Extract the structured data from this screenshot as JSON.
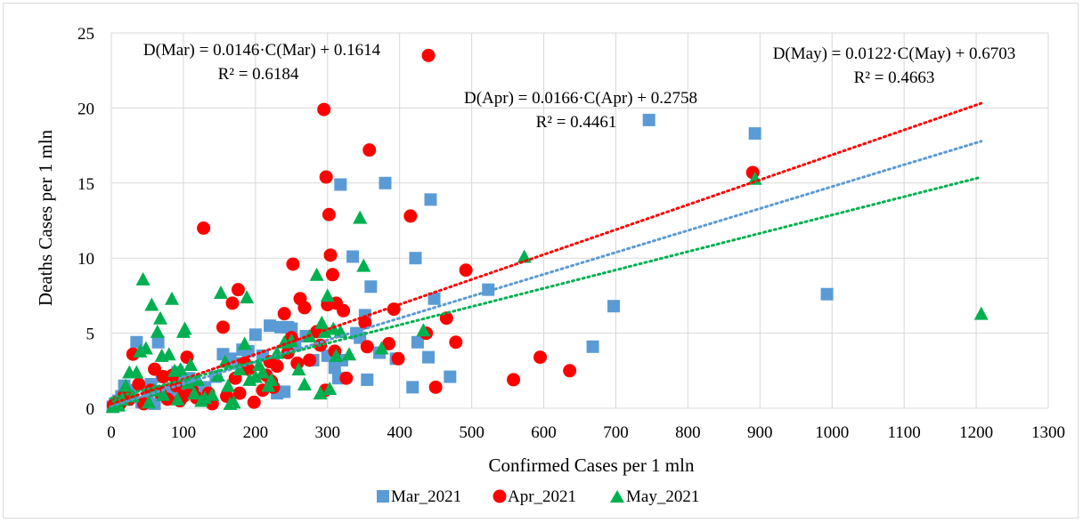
{
  "chart_data": {
    "type": "scatter",
    "title": "",
    "xlabel": "Confirmed Cases per 1 mln",
    "ylabel": "Deaths Cases  per 1 mln",
    "xlim": [
      0,
      1300
    ],
    "ylim": [
      0,
      25
    ],
    "x_ticks": [
      "0",
      "100",
      "200",
      "300",
      "400",
      "500",
      "600",
      "700",
      "800",
      "900",
      "1000",
      "1100",
      "1200",
      "1300"
    ],
    "y_ticks": [
      "0",
      "5",
      "10",
      "15",
      "20",
      "25"
    ],
    "grid": "vertical and horizontal major gridlines",
    "legend_position": "bottom",
    "series": [
      {
        "name": "Mar_2021",
        "marker": "square",
        "color": "#5B9BD5",
        "trendline": {
          "slope": 0.0146,
          "intercept": 0.1614,
          "color": "#5B9BD5",
          "style": "dotted"
        },
        "points": [
          [
            2,
            0.1
          ],
          [
            5,
            0.3
          ],
          [
            8,
            0.2
          ],
          [
            10,
            0.5
          ],
          [
            14,
            0.8
          ],
          [
            18,
            1.5
          ],
          [
            22,
            0.6
          ],
          [
            28,
            1.2
          ],
          [
            35,
            4.4
          ],
          [
            42,
            0.4
          ],
          [
            50,
            0.9
          ],
          [
            55,
            1.6
          ],
          [
            60,
            0.3
          ],
          [
            65,
            4.4
          ],
          [
            70,
            2.1
          ],
          [
            75,
            1.1
          ],
          [
            85,
            0.9
          ],
          [
            92,
            2.4
          ],
          [
            100,
            1.6
          ],
          [
            108,
            2.0
          ],
          [
            115,
            1.0
          ],
          [
            120,
            1.2
          ],
          [
            130,
            1.4
          ],
          [
            145,
            2.1
          ],
          [
            155,
            3.6
          ],
          [
            165,
            3.3
          ],
          [
            175,
            3.0
          ],
          [
            182,
            3.9
          ],
          [
            190,
            3.8
          ],
          [
            200,
            4.9
          ],
          [
            210,
            3.5
          ],
          [
            220,
            5.5
          ],
          [
            225,
            3.1
          ],
          [
            230,
            1.0
          ],
          [
            235,
            5.4
          ],
          [
            240,
            1.1
          ],
          [
            245,
            5.4
          ],
          [
            250,
            5.3
          ],
          [
            255,
            4.2
          ],
          [
            270,
            4.8
          ],
          [
            280,
            3.2
          ],
          [
            300,
            3.5
          ],
          [
            310,
            2.7
          ],
          [
            315,
            2.0
          ],
          [
            318,
            14.9
          ],
          [
            320,
            3.2
          ],
          [
            335,
            10.1
          ],
          [
            340,
            5.0
          ],
          [
            345,
            4.7
          ],
          [
            352,
            6.2
          ],
          [
            355,
            1.9
          ],
          [
            360,
            8.1
          ],
          [
            372,
            3.7
          ],
          [
            380,
            15.0
          ],
          [
            395,
            3.3
          ],
          [
            418,
            1.4
          ],
          [
            422,
            10.0
          ],
          [
            425,
            4.4
          ],
          [
            440,
            3.4
          ],
          [
            443,
            13.9
          ],
          [
            448,
            7.3
          ],
          [
            470,
            2.1
          ],
          [
            523,
            7.9
          ],
          [
            668,
            4.1
          ],
          [
            697,
            6.8
          ],
          [
            746,
            19.2
          ],
          [
            893,
            18.3
          ],
          [
            993,
            7.6
          ]
        ]
      },
      {
        "name": "Apr_2021",
        "marker": "circle",
        "color": "#FF0000",
        "trendline": {
          "slope": 0.0166,
          "intercept": 0.2758,
          "color": "#FF0000",
          "style": "dotted"
        },
        "points": [
          [
            3,
            0.2
          ],
          [
            8,
            0.4
          ],
          [
            12,
            0.3
          ],
          [
            18,
            0.9
          ],
          [
            25,
            0.6
          ],
          [
            30,
            3.6
          ],
          [
            38,
            1.6
          ],
          [
            45,
            0.3
          ],
          [
            55,
            1.2
          ],
          [
            60,
            2.6
          ],
          [
            68,
            1.0
          ],
          [
            72,
            2.1
          ],
          [
            78,
            0.6
          ],
          [
            85,
            2.2
          ],
          [
            90,
            1.5
          ],
          [
            95,
            0.5
          ],
          [
            100,
            0.8
          ],
          [
            105,
            3.4
          ],
          [
            112,
            1.2
          ],
          [
            118,
            0.7
          ],
          [
            128,
            12.0
          ],
          [
            135,
            1.0
          ],
          [
            140,
            0.3
          ],
          [
            155,
            5.4
          ],
          [
            160,
            0.8
          ],
          [
            168,
            7.0
          ],
          [
            172,
            2.0
          ],
          [
            176,
            7.9
          ],
          [
            178,
            1.0
          ],
          [
            185,
            3.0
          ],
          [
            190,
            2.6
          ],
          [
            198,
            0.4
          ],
          [
            210,
            1.2
          ],
          [
            215,
            2.2
          ],
          [
            220,
            3.1
          ],
          [
            222,
            1.8
          ],
          [
            225,
            1.4
          ],
          [
            230,
            2.8
          ],
          [
            240,
            6.3
          ],
          [
            245,
            3.7
          ],
          [
            250,
            4.7
          ],
          [
            252,
            9.6
          ],
          [
            258,
            3.0
          ],
          [
            262,
            7.3
          ],
          [
            268,
            6.7
          ],
          [
            275,
            3.2
          ],
          [
            285,
            5.1
          ],
          [
            290,
            4.2
          ],
          [
            295,
            19.9
          ],
          [
            297,
            1.2
          ],
          [
            298,
            15.4
          ],
          [
            300,
            6.9
          ],
          [
            302,
            12.9
          ],
          [
            304,
            10.2
          ],
          [
            307,
            8.9
          ],
          [
            310,
            3.8
          ],
          [
            312,
            7.0
          ],
          [
            322,
            6.5
          ],
          [
            326,
            2.0
          ],
          [
            352,
            5.7
          ],
          [
            355,
            4.1
          ],
          [
            358,
            17.2
          ],
          [
            385,
            4.3
          ],
          [
            392,
            6.6
          ],
          [
            398,
            3.3
          ],
          [
            415,
            12.8
          ],
          [
            437,
            5.0
          ],
          [
            440,
            23.5
          ],
          [
            450,
            1.4
          ],
          [
            465,
            6.0
          ],
          [
            478,
            4.4
          ],
          [
            492,
            9.2
          ],
          [
            558,
            1.9
          ],
          [
            595,
            3.4
          ],
          [
            636,
            2.5
          ],
          [
            890,
            15.7
          ]
        ]
      },
      {
        "name": "May_2021",
        "marker": "triangle",
        "color": "#00B050",
        "trendline": {
          "slope": 0.0122,
          "intercept": 0.6703,
          "color": "#00B050",
          "style": "dotted"
        },
        "points": [
          [
            2,
            0.1
          ],
          [
            6,
            0.3
          ],
          [
            10,
            0.2
          ],
          [
            15,
            0.6
          ],
          [
            20,
            1.5
          ],
          [
            25,
            2.4
          ],
          [
            30,
            0.8
          ],
          [
            35,
            2.4
          ],
          [
            40,
            3.8
          ],
          [
            44,
            8.6
          ],
          [
            48,
            4.0
          ],
          [
            52,
            0.4
          ],
          [
            56,
            6.9
          ],
          [
            60,
            1.2
          ],
          [
            64,
            5.1
          ],
          [
            68,
            6.0
          ],
          [
            70,
            3.5
          ],
          [
            72,
            0.9
          ],
          [
            80,
            3.6
          ],
          [
            84,
            7.3
          ],
          [
            88,
            2.5
          ],
          [
            92,
            0.6
          ],
          [
            96,
            2.6
          ],
          [
            100,
            5.1
          ],
          [
            102,
            5.3
          ],
          [
            106,
            1.7
          ],
          [
            110,
            2.9
          ],
          [
            115,
            1.0
          ],
          [
            120,
            1.9
          ],
          [
            125,
            0.5
          ],
          [
            130,
            0.7
          ],
          [
            140,
            0.9
          ],
          [
            148,
            2.2
          ],
          [
            152,
            7.7
          ],
          [
            158,
            3.1
          ],
          [
            162,
            1.5
          ],
          [
            165,
            0.3
          ],
          [
            170,
            0.4
          ],
          [
            178,
            2.6
          ],
          [
            185,
            4.3
          ],
          [
            188,
            7.4
          ],
          [
            192,
            1.9
          ],
          [
            200,
            2.1
          ],
          [
            205,
            2.9
          ],
          [
            210,
            2.4
          ],
          [
            218,
            1.5
          ],
          [
            222,
            1.9
          ],
          [
            230,
            3.7
          ],
          [
            240,
            4.4
          ],
          [
            250,
            4.5
          ],
          [
            260,
            2.6
          ],
          [
            268,
            1.6
          ],
          [
            275,
            4.8
          ],
          [
            285,
            8.9
          ],
          [
            290,
            1.0
          ],
          [
            292,
            5.7
          ],
          [
            296,
            5.1
          ],
          [
            300,
            7.5
          ],
          [
            303,
            1.3
          ],
          [
            308,
            5.3
          ],
          [
            312,
            3.5
          ],
          [
            318,
            5.1
          ],
          [
            330,
            3.6
          ],
          [
            345,
            12.7
          ],
          [
            350,
            9.5
          ],
          [
            375,
            4.0
          ],
          [
            433,
            5.2
          ],
          [
            573,
            10.1
          ],
          [
            893,
            15.3
          ],
          [
            1207,
            6.3
          ]
        ]
      }
    ],
    "annotations": {
      "mar_eq": "D(Mar) = 0.0146·C(Mar) + 0.1614",
      "mar_r2": "R² = 0.6184",
      "apr_eq": "D(Apr) = 0.0166·C(Apr) + 0.2758",
      "apr_r2": "R² = 0.4461",
      "may_eq": "D(May) = 0.0122·C(May) + 0.6703",
      "may_r2": "R² = 0.4663"
    }
  }
}
